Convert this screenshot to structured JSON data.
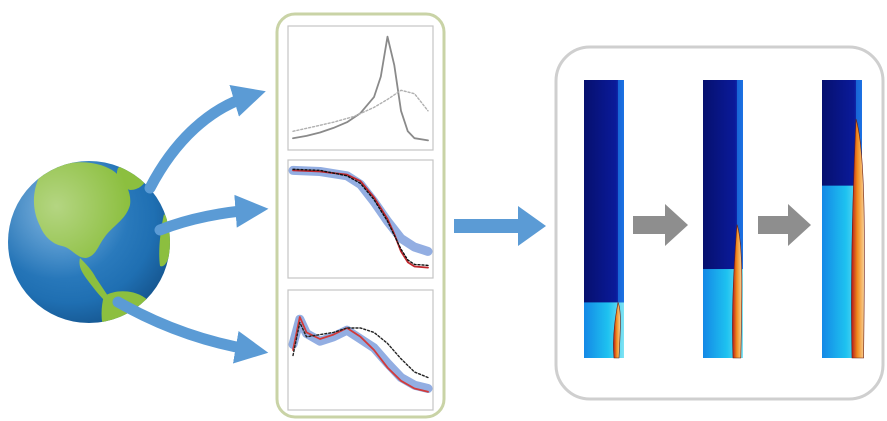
{
  "colors": {
    "background": "#ffffff",
    "flow_arrow": "#5b9bd5",
    "step_arrow": "#8e8e8e",
    "panel_border": "#c9d3a6",
    "result_border": "#cfcfcf",
    "ocean": "#1f6fb2",
    "land": "#8cbf3f",
    "sim_top": "#08107a",
    "sim_mid": "#1e6fe8",
    "sim_low": "#18c6ee"
  },
  "diagram": {
    "source": {
      "icon": "globe-icon"
    },
    "validation_panel": {
      "plots": [
        {
          "icon": "peak-curve-plot",
          "series": [
            {
              "name": "",
              "style": "solid",
              "color": "#8a8a8a",
              "x": [
                0,
                0.1,
                0.2,
                0.3,
                0.4,
                0.5,
                0.6,
                0.65,
                0.7,
                0.75,
                0.8,
                0.85,
                0.9,
                1
              ],
              "y": [
                0.06,
                0.08,
                0.11,
                0.15,
                0.2,
                0.28,
                0.42,
                0.6,
                0.95,
                0.7,
                0.3,
                0.12,
                0.06,
                0.04
              ]
            },
            {
              "name": "",
              "style": "dotted",
              "color": "#b0b0b0",
              "x": [
                0,
                0.15,
                0.3,
                0.45,
                0.6,
                0.7,
                0.8,
                0.9,
                1
              ],
              "y": [
                0.12,
                0.16,
                0.2,
                0.25,
                0.33,
                0.4,
                0.48,
                0.45,
                0.3
              ]
            }
          ]
        },
        {
          "icon": "decay-curve-plot",
          "series": [
            {
              "name": "",
              "style": "band",
              "color": "#6f93d8",
              "x": [
                0,
                0.2,
                0.4,
                0.5,
                0.6,
                0.7,
                0.8,
                0.9,
                1
              ],
              "y": [
                0.95,
                0.94,
                0.9,
                0.82,
                0.66,
                0.48,
                0.32,
                0.24,
                0.2
              ]
            },
            {
              "name": "",
              "style": "solid",
              "color": "#c0262c",
              "x": [
                0,
                0.2,
                0.4,
                0.5,
                0.6,
                0.7,
                0.75,
                0.8,
                0.85,
                0.9,
                1
              ],
              "y": [
                0.95,
                0.94,
                0.91,
                0.85,
                0.7,
                0.5,
                0.36,
                0.2,
                0.1,
                0.06,
                0.05
              ]
            },
            {
              "name": "",
              "style": "dotted",
              "color": "#111111",
              "x": [
                0,
                0.2,
                0.4,
                0.5,
                0.6,
                0.7,
                0.8,
                0.85,
                0.9,
                1
              ],
              "y": [
                0.96,
                0.95,
                0.9,
                0.83,
                0.68,
                0.48,
                0.22,
                0.12,
                0.08,
                0.07
              ]
            }
          ]
        },
        {
          "icon": "profile-curve-plot",
          "series": [
            {
              "name": "",
              "style": "band",
              "color": "#6f93d8",
              "x": [
                0,
                0.05,
                0.1,
                0.2,
                0.3,
                0.4,
                0.5,
                0.6,
                0.7,
                0.8,
                0.9,
                1
              ],
              "y": [
                0.55,
                0.78,
                0.65,
                0.58,
                0.62,
                0.68,
                0.6,
                0.52,
                0.38,
                0.25,
                0.18,
                0.15
              ]
            },
            {
              "name": "",
              "style": "solid",
              "color": "#d23a3a",
              "x": [
                0,
                0.05,
                0.1,
                0.2,
                0.3,
                0.4,
                0.5,
                0.6,
                0.7,
                0.8,
                0.9,
                1
              ],
              "y": [
                0.5,
                0.8,
                0.66,
                0.6,
                0.64,
                0.7,
                0.62,
                0.5,
                0.34,
                0.22,
                0.15,
                0.12
              ]
            },
            {
              "name": "",
              "style": "dotted",
              "color": "#222222",
              "x": [
                0,
                0.05,
                0.1,
                0.2,
                0.3,
                0.4,
                0.5,
                0.6,
                0.7,
                0.8,
                0.9,
                1
              ],
              "y": [
                0.45,
                0.75,
                0.62,
                0.64,
                0.66,
                0.7,
                0.7,
                0.66,
                0.56,
                0.42,
                0.3,
                0.25
              ]
            }
          ]
        }
      ]
    },
    "results_panel": {
      "snapshots": [
        {
          "icon": "simulation-snapshot",
          "cyan_fraction": 0.2,
          "flame_height": 0.2
        },
        {
          "icon": "simulation-snapshot",
          "cyan_fraction": 0.32,
          "flame_height": 0.48
        },
        {
          "icon": "simulation-snapshot",
          "cyan_fraction": 0.62,
          "flame_height": 0.86
        }
      ]
    },
    "connectors": {
      "fan_out": [
        "curved-arrow",
        "curved-arrow",
        "curved-arrow"
      ],
      "main": "right-arrow",
      "steps": [
        "gray-step-arrow",
        "gray-step-arrow"
      ]
    }
  }
}
